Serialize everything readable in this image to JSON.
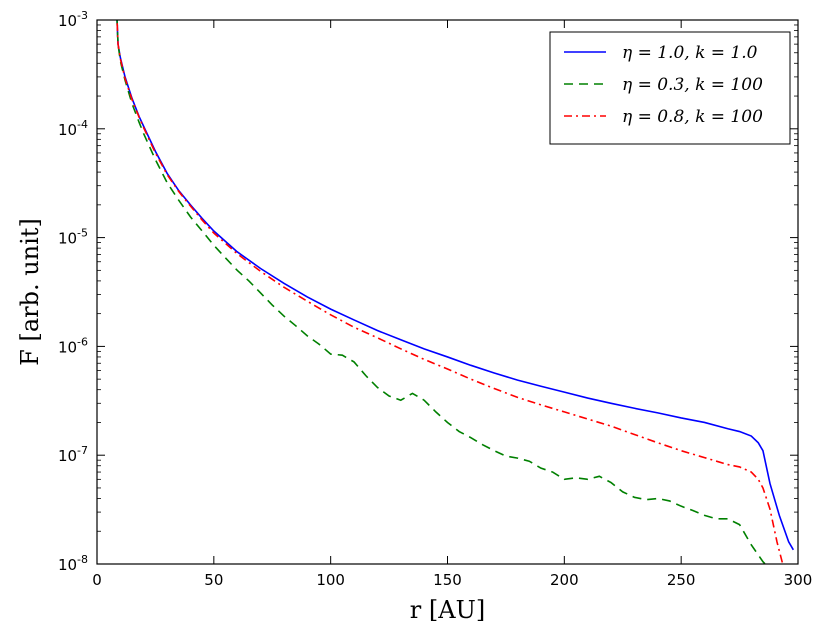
{
  "chart_data": {
    "type": "line",
    "xlabel": "r [AU]",
    "ylabel": "F [arb. unit]",
    "xlim": [
      0,
      300
    ],
    "ylim": [
      1e-08,
      0.001
    ],
    "yscale": "log",
    "grid": false,
    "legend_position": "top-right",
    "x_ticks": [
      "0",
      "50",
      "100",
      "150",
      "200",
      "250",
      "300"
    ],
    "y_ticks": [
      {
        "base": "10",
        "exp": "-8"
      },
      {
        "base": "10",
        "exp": "-7"
      },
      {
        "base": "10",
        "exp": "-6"
      },
      {
        "base": "10",
        "exp": "-5"
      },
      {
        "base": "10",
        "exp": "-4"
      },
      {
        "base": "10",
        "exp": "-3"
      }
    ],
    "series": [
      {
        "name": "η = 1.0, k = 1.0",
        "color": "#0000ff",
        "style": "solid",
        "x": [
          8,
          9,
          10,
          12,
          15,
          18,
          20,
          25,
          30,
          35,
          40,
          45,
          50,
          60,
          70,
          80,
          90,
          100,
          110,
          120,
          130,
          140,
          150,
          160,
          170,
          180,
          190,
          200,
          210,
          220,
          230,
          240,
          250,
          260,
          270,
          275,
          280,
          283,
          285,
          288,
          292,
          296,
          298
        ],
        "y": [
          0.002,
          0.0006,
          0.00045,
          0.0003,
          0.00019,
          0.00013,
          0.000105,
          6.2e-05,
          3.9e-05,
          2.7e-05,
          2e-05,
          1.5e-05,
          1.15e-05,
          7.4e-06,
          5.2e-06,
          3.8e-06,
          2.85e-06,
          2.2e-06,
          1.75e-06,
          1.4e-06,
          1.15e-06,
          9.5e-07,
          8e-07,
          6.7e-07,
          5.7e-07,
          4.9e-07,
          4.3e-07,
          3.8e-07,
          3.35e-07,
          3e-07,
          2.7e-07,
          2.45e-07,
          2.2e-07,
          2e-07,
          1.75e-07,
          1.65e-07,
          1.5e-07,
          1.3e-07,
          1.1e-07,
          5.5e-08,
          2.8e-08,
          1.6e-08,
          1.35e-08
        ]
      },
      {
        "name": "η = 0.3, k = 100",
        "color": "#008000",
        "style": "dashed",
        "x": [
          8,
          9,
          10,
          12,
          15,
          18,
          20,
          25,
          30,
          35,
          40,
          45,
          50,
          55,
          60,
          65,
          70,
          75,
          80,
          85,
          90,
          95,
          100,
          105,
          110,
          115,
          120,
          125,
          130,
          135,
          140,
          145,
          150,
          155,
          160,
          165,
          170,
          175,
          180,
          185,
          190,
          195,
          200,
          205,
          210,
          215,
          220,
          225,
          230,
          235,
          240,
          245,
          250,
          255,
          260,
          265,
          270,
          275,
          280,
          285,
          288
        ],
        "y": [
          0.002,
          0.0006,
          0.00042,
          0.00028,
          0.00017,
          0.000115,
          9e-05,
          5.2e-05,
          3.2e-05,
          2.2e-05,
          1.55e-05,
          1.15e-05,
          8.5e-06,
          6.5e-06,
          5e-06,
          4e-06,
          3.1e-06,
          2.4e-06,
          1.9e-06,
          1.55e-06,
          1.25e-06,
          1.05e-06,
          8.5e-07,
          8.3e-07,
          7.2e-07,
          5.4e-07,
          4.2e-07,
          3.5e-07,
          3.2e-07,
          3.7e-07,
          3.2e-07,
          2.5e-07,
          2e-07,
          1.65e-07,
          1.45e-07,
          1.25e-07,
          1.1e-07,
          9.8e-08,
          9.4e-08,
          8.8e-08,
          7.6e-08,
          7e-08,
          6e-08,
          6.2e-08,
          6e-08,
          6.4e-08,
          5.6e-08,
          4.6e-08,
          4.1e-08,
          3.9e-08,
          4e-08,
          3.8e-08,
          3.4e-08,
          3.1e-08,
          2.8e-08,
          2.6e-08,
          2.6e-08,
          2.3e-08,
          1.5e-08,
          1.05e-08,
          9e-09
        ]
      },
      {
        "name": "η = 0.8, k = 100",
        "color": "#ff0000",
        "style": "dashdot",
        "x": [
          8,
          9,
          10,
          12,
          15,
          18,
          20,
          25,
          30,
          35,
          40,
          45,
          50,
          60,
          70,
          80,
          90,
          100,
          110,
          120,
          130,
          140,
          150,
          160,
          170,
          180,
          190,
          200,
          210,
          220,
          230,
          240,
          250,
          260,
          270,
          275,
          280,
          283,
          285,
          288,
          291,
          294
        ],
        "y": [
          0.002,
          0.0006,
          0.00044,
          0.00029,
          0.000185,
          0.000128,
          0.000102,
          6e-05,
          3.8e-05,
          2.65e-05,
          1.95e-05,
          1.45e-05,
          1.1e-05,
          7.1e-06,
          4.9e-06,
          3.5e-06,
          2.6e-06,
          1.95e-06,
          1.5e-06,
          1.2e-06,
          9.5e-07,
          7.6e-07,
          6.2e-07,
          5e-07,
          4.1e-07,
          3.4e-07,
          2.9e-07,
          2.5e-07,
          2.15e-07,
          1.85e-07,
          1.55e-07,
          1.3e-07,
          1.1e-07,
          9.5e-08,
          8.2e-08,
          7.8e-08,
          7e-08,
          6e-08,
          5e-08,
          3.2e-08,
          1.6e-08,
          9e-09
        ]
      }
    ]
  }
}
